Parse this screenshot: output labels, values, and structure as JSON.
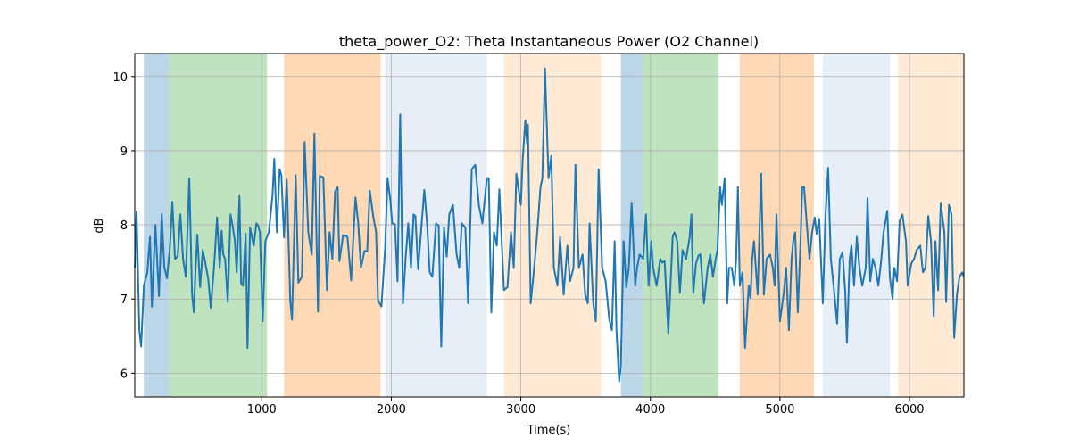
{
  "chart_data": {
    "type": "line",
    "title": "theta_power_O2: Theta Instantaneous Power (O2 Channel)",
    "xlabel": "Time(s)",
    "ylabel": "dB",
    "xlim": [
      20,
      6420
    ],
    "ylim": [
      5.68,
      10.31
    ],
    "grid": true,
    "xticks": [
      1000,
      2000,
      3000,
      4000,
      5000,
      6000
    ],
    "yticks": [
      6,
      7,
      8,
      9,
      10
    ],
    "line_color": "#1f77b4",
    "spans": [
      {
        "start": 90,
        "end": 283,
        "color": "#1f77b4",
        "alpha": 0.3
      },
      {
        "start": 283,
        "end": 1041,
        "color": "#2ca02c",
        "alpha": 0.3
      },
      {
        "start": 1172,
        "end": 1917,
        "color": "#ff7f0e",
        "alpha": 0.3
      },
      {
        "start": 1952,
        "end": 2738,
        "color": "#aec7e8",
        "alpha": 0.3
      },
      {
        "start": 2869,
        "end": 3621,
        "color": "#ffbb78",
        "alpha": 0.3
      },
      {
        "start": 3772,
        "end": 3938,
        "color": "#1f77b4",
        "alpha": 0.3
      },
      {
        "start": 3938,
        "end": 4524,
        "color": "#2ca02c",
        "alpha": 0.3
      },
      {
        "start": 4690,
        "end": 5262,
        "color": "#ff7f0e",
        "alpha": 0.3
      },
      {
        "start": 5331,
        "end": 5848,
        "color": "#aec7e8",
        "alpha": 0.3
      },
      {
        "start": 5910,
        "end": 6420,
        "color": "#ffbb78",
        "alpha": 0.3
      }
    ],
    "x": [
      21,
      34,
      55,
      69,
      90,
      117,
      138,
      152,
      179,
      207,
      228,
      248,
      269,
      290,
      310,
      331,
      352,
      372,
      393,
      414,
      441,
      462,
      476,
      490,
      503,
      524,
      545,
      559,
      586,
      607,
      634,
      655,
      676,
      690,
      703,
      717,
      738,
      759,
      772,
      793,
      807,
      828,
      841,
      855,
      876,
      890,
      910,
      938,
      959,
      972,
      986,
      1007,
      1028,
      1055,
      1083,
      1097,
      1117,
      1138,
      1152,
      1172,
      1193,
      1221,
      1234,
      1262,
      1283,
      1310,
      1331,
      1359,
      1386,
      1407,
      1434,
      1448,
      1476,
      1503,
      1524,
      1545,
      1566,
      1586,
      1600,
      1628,
      1662,
      1690,
      1724,
      1745,
      1766,
      1793,
      1814,
      1834,
      1862,
      1883,
      1897,
      1924,
      1952,
      1972,
      1993,
      2007,
      2028,
      2048,
      2069,
      2090,
      2110,
      2131,
      2152,
      2172,
      2186,
      2207,
      2235,
      2255,
      2276,
      2297,
      2317,
      2345,
      2366,
      2386,
      2407,
      2428,
      2448,
      2476,
      2504,
      2524,
      2545,
      2572,
      2593,
      2621,
      2648,
      2676,
      2703,
      2738,
      2752,
      2772,
      2793,
      2814,
      2834,
      2869,
      2897,
      2924,
      2945,
      2966,
      3000,
      3014,
      3035,
      3048,
      3055,
      3076,
      3097,
      3124,
      3152,
      3166,
      3186,
      3214,
      3235,
      3255,
      3283,
      3303,
      3331,
      3359,
      3379,
      3407,
      3421,
      3448,
      3476,
      3497,
      3517,
      3531,
      3559,
      3579,
      3600,
      3628,
      3655,
      3683,
      3703,
      3724,
      3738,
      3759,
      3772,
      3793,
      3814,
      3834,
      3855,
      3883,
      3897,
      3917,
      3945,
      3966,
      3986,
      4007,
      4021,
      4048,
      4076,
      4090,
      4110,
      4138,
      4152,
      4172,
      4186,
      4207,
      4228,
      4248,
      4276,
      4304,
      4317,
      4331,
      4352,
      4373,
      4386,
      4414,
      4428,
      4442,
      4462,
      4483,
      4504,
      4517,
      4538,
      4552,
      4573,
      4593,
      4607,
      4628,
      4648,
      4662,
      4676,
      4690,
      4711,
      4731,
      4759,
      4773,
      4786,
      4800,
      4828,
      4855,
      4876,
      4897,
      4924,
      4945,
      4959,
      4973,
      5000,
      5014,
      5028,
      5048,
      5069,
      5090,
      5103,
      5117,
      5138,
      5159,
      5172,
      5186,
      5207,
      5228,
      5248,
      5269,
      5283,
      5303,
      5331,
      5352,
      5372,
      5393,
      5414,
      5441,
      5462,
      5483,
      5504,
      5517,
      5538,
      5552,
      5572,
      5593,
      5614,
      5635,
      5662,
      5676,
      5697,
      5717,
      5738,
      5759,
      5779,
      5800,
      5828,
      5848,
      5869,
      5883,
      5904,
      5924,
      5945,
      5973,
      5986,
      6014,
      6035,
      6055,
      6083,
      6104,
      6124,
      6145,
      6166,
      6187,
      6200,
      6221,
      6241,
      6269,
      6283,
      6304,
      6324,
      6345,
      6366,
      6386,
      6407,
      6420
    ],
    "y": [
      7.42,
      8.18,
      6.58,
      6.36,
      7.18,
      7.36,
      7.84,
      6.9,
      8.0,
      7.04,
      8.14,
      7.43,
      7.28,
      7.67,
      8.31,
      7.54,
      7.58,
      8.14,
      7.54,
      7.3,
      8.63,
      7.06,
      6.82,
      7.42,
      7.87,
      7.16,
      7.66,
      7.54,
      7.28,
      6.88,
      7.48,
      8.1,
      7.42,
      7.92,
      7.6,
      7.54,
      6.96,
      8.14,
      8.02,
      7.78,
      7.36,
      8.39,
      7.2,
      7.18,
      7.88,
      6.34,
      7.96,
      7.72,
      8.02,
      7.99,
      7.9,
      6.7,
      7.78,
      7.9,
      8.39,
      8.89,
      7.9,
      8.75,
      8.67,
      7.83,
      8.61,
      6.96,
      6.72,
      8.67,
      7.22,
      7.3,
      9.12,
      7.9,
      7.6,
      9.23,
      6.83,
      8.66,
      8.64,
      7.12,
      7.9,
      7.54,
      8.45,
      8.51,
      7.51,
      7.86,
      7.84,
      7.25,
      8.37,
      8.02,
      7.42,
      7.65,
      7.64,
      8.46,
      8.1,
      7.9,
      6.98,
      6.9,
      7.66,
      8.63,
      8.33,
      8.02,
      8.01,
      7.24,
      9.49,
      6.94,
      7.54,
      8.02,
      7.42,
      8.14,
      8.12,
      7.4,
      8.02,
      8.47,
      8.02,
      7.36,
      7.3,
      8.02,
      7.99,
      6.36,
      7.96,
      7.57,
      8.14,
      8.27,
      7.6,
      7.42,
      8.02,
      7.96,
      6.94,
      8.75,
      8.81,
      8.27,
      8.02,
      8.63,
      8.63,
      6.82,
      7.9,
      7.72,
      8.48,
      7.12,
      7.16,
      7.9,
      7.42,
      8.69,
      8.27,
      8.87,
      9.41,
      9.1,
      9.35,
      6.94,
      7.3,
      7.84,
      8.51,
      8.63,
      10.11,
      8.63,
      8.93,
      7.42,
      7.18,
      7.84,
      7.06,
      7.72,
      7.24,
      7.42,
      8.81,
      7.42,
      7.6,
      7.06,
      6.94,
      8.02,
      6.94,
      6.7,
      8.75,
      7.42,
      7.24,
      6.72,
      6.58,
      7.78,
      6.58,
      5.89,
      6.1,
      7.78,
      7.16,
      7.42,
      8.29,
      7.18,
      7.42,
      7.6,
      7.54,
      8.14,
      7.18,
      7.78,
      7.42,
      7.18,
      7.54,
      7.49,
      7.51,
      6.54,
      7.06,
      7.84,
      7.9,
      7.78,
      7.08,
      7.66,
      7.54,
      7.84,
      8.14,
      7.08,
      7.48,
      7.59,
      7.6,
      6.94,
      7.18,
      7.42,
      7.6,
      7.3,
      7.54,
      7.66,
      8.51,
      8.27,
      8.63,
      6.94,
      7.42,
      7.42,
      7.18,
      7.54,
      8.51,
      7.18,
      7.36,
      6.34,
      7.18,
      7.01,
      7.54,
      7.78,
      7.06,
      8.69,
      7.06,
      7.54,
      7.6,
      7.42,
      7.18,
      8.14,
      6.7,
      6.88,
      7.06,
      7.42,
      6.58,
      7.54,
      7.78,
      7.9,
      6.82,
      7.78,
      8.51,
      8.51,
      8.02,
      7.54,
      7.9,
      8.1,
      7.88,
      8.08,
      6.94,
      8.14,
      8.77,
      7.54,
      7.18,
      6.67,
      7.54,
      7.63,
      7.1,
      6.41,
      7.54,
      7.72,
      7.18,
      7.84,
      7.42,
      7.18,
      7.42,
      8.36,
      7.24,
      7.54,
      7.42,
      7.18,
      7.48,
      7.9,
      8.19,
      7.3,
      7.0,
      7.42,
      7.24,
      8.05,
      8.14,
      7.78,
      7.18,
      7.48,
      7.54,
      7.66,
      7.72,
      7.36,
      7.42,
      8.12,
      7.78,
      6.77,
      7.78,
      7.12,
      8.29,
      7.9,
      6.96,
      8.27,
      8.14,
      6.48,
      7.06,
      7.3,
      7.36,
      7.3
    ]
  }
}
